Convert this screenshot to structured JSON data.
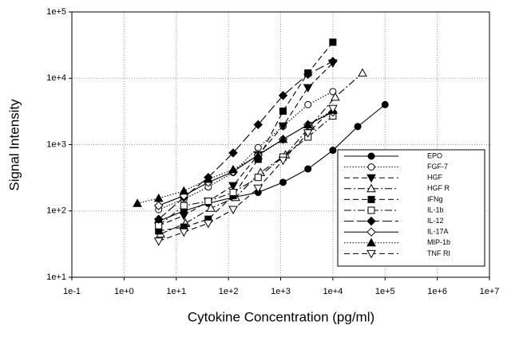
{
  "chart_data": {
    "type": "line",
    "xlabel": "Cytokine Concentration (pg/ml)",
    "ylabel": "Signal Intensity",
    "log_x": true,
    "log_y": true,
    "grid": true,
    "legend": "lower right",
    "xlim": [
      0.1,
      10000000
    ],
    "ylim": [
      10,
      100000
    ],
    "xticks": [
      {
        "value": 0.1,
        "label": "1e-1"
      },
      {
        "value": 1,
        "label": "1e+0"
      },
      {
        "value": 10,
        "label": "1e+1"
      },
      {
        "value": 100,
        "label": "1e+2"
      },
      {
        "value": 1000,
        "label": "1e+3"
      },
      {
        "value": 10000,
        "label": "1e+4"
      },
      {
        "value": 100000,
        "label": "1e+5"
      },
      {
        "value": 1000000,
        "label": "1e+6"
      },
      {
        "value": 10000000,
        "label": "1e+7"
      }
    ],
    "yticks": [
      {
        "value": 10,
        "label": "1e+1"
      },
      {
        "value": 100,
        "label": "1e+2"
      },
      {
        "value": 1000,
        "label": "1e+3"
      },
      {
        "value": 10000,
        "label": "1e+4"
      },
      {
        "value": 100000,
        "label": "1e+5"
      }
    ],
    "series": [
      {
        "name": "EPO",
        "color": "#000000",
        "marker": "circle",
        "filled": true,
        "dash": "solid",
        "x": [
          4.6,
          14,
          41,
          123,
          370,
          1111,
          3333,
          10000,
          30000,
          100000
        ],
        "values": [
          70,
          100,
          130,
          160,
          190,
          270,
          430,
          820,
          1870,
          4000
        ]
      },
      {
        "name": "FGF-7",
        "color": "#000000",
        "marker": "circle",
        "filled": false,
        "dash": "dotted",
        "x": [
          4.6,
          14,
          41,
          123,
          370,
          1111,
          3333,
          10000
        ],
        "values": [
          105,
          150,
          230,
          380,
          900,
          1900,
          4000,
          6300
        ]
      },
      {
        "name": "HGF",
        "color": "#000000",
        "marker": "triangle-down",
        "filled": true,
        "dash": "dashed",
        "x": [
          4.6,
          14,
          41,
          123,
          370,
          1111,
          3333,
          10000
        ],
        "values": [
          60,
          85,
          140,
          240,
          700,
          1900,
          7200,
          17000
        ]
      },
      {
        "name": "HGF R",
        "color": "#000000",
        "marker": "triangle-up",
        "filled": false,
        "dash": "dash-dot",
        "x": [
          5,
          15,
          46,
          137,
          411,
          1234,
          3700,
          11100,
          37000
        ],
        "values": [
          45,
          65,
          110,
          160,
          380,
          700,
          1900,
          5200,
          12000
        ]
      },
      {
        "name": "IFNg",
        "color": "#000000",
        "marker": "square",
        "filled": true,
        "dash": "dashed",
        "x": [
          4.6,
          14,
          41,
          123,
          370,
          1111,
          3333,
          10000
        ],
        "values": [
          50,
          57,
          75,
          170,
          600,
          3200,
          12000,
          35000
        ]
      },
      {
        "name": "IL-1b",
        "color": "#000000",
        "marker": "square",
        "filled": false,
        "dash": "dash-dot",
        "x": [
          4.6,
          14,
          41,
          123,
          370,
          1111,
          3333,
          10000
        ],
        "values": [
          60,
          120,
          140,
          190,
          320,
          650,
          1300,
          2700
        ]
      },
      {
        "name": "IL-12",
        "color": "#000000",
        "marker": "diamond",
        "filled": true,
        "dash": "long-dash",
        "x": [
          4.6,
          14,
          41,
          123,
          370,
          1111,
          3333,
          10000
        ],
        "values": [
          75,
          160,
          320,
          750,
          2000,
          5500,
          11500,
          18000
        ]
      },
      {
        "name": "IL-17A",
        "color": "#000000",
        "marker": "diamond",
        "filled": false,
        "dash": "solid",
        "x": [
          4.6,
          14,
          41,
          123,
          370,
          1111,
          3333,
          10000
        ],
        "values": [
          120,
          170,
          270,
          390,
          700,
          1200,
          2000,
          3100
        ]
      },
      {
        "name": "MIP-1b",
        "color": "#000000",
        "marker": "triangle-up",
        "filled": true,
        "dash": "dotted",
        "x": [
          1.8,
          4.6,
          14,
          41,
          123,
          370,
          1111,
          3333,
          10000
        ],
        "values": [
          130,
          155,
          200,
          300,
          420,
          680,
          1200,
          2000,
          3300
        ]
      },
      {
        "name": "TNF RI",
        "color": "#000000",
        "marker": "triangle-down",
        "filled": false,
        "dash": "dashed",
        "x": [
          4.6,
          14,
          41,
          123,
          370,
          1111,
          3333,
          10000
        ],
        "values": [
          35,
          48,
          65,
          105,
          220,
          580,
          1500,
          3500
        ]
      }
    ]
  }
}
